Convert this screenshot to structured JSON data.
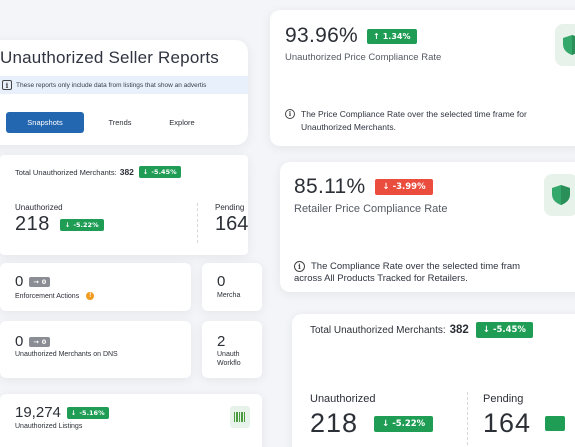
{
  "reports": {
    "title": "Unauthorized Seller Reports",
    "notice": "These reports only include data from listings that show an advertis",
    "tabs": [
      {
        "label": "Snapshots",
        "active": true
      },
      {
        "label": "Trends",
        "active": false
      },
      {
        "label": "Explore",
        "active": false
      }
    ],
    "total_label": "Total Unauthorized Merchants:",
    "total_value": "382",
    "total_change": "-5.45%",
    "unauthorized_label": "Unauthorized",
    "unauthorized_value": "218",
    "unauthorized_change": "-5.22%",
    "pending_label": "Pending",
    "pending_value": "164",
    "enforcement_value": "0",
    "enforcement_change": "0",
    "enforcement_label": "Enforcement Actions",
    "merch_value": "0",
    "merch_label": "Mercha",
    "dns_value": "0",
    "dns_change": "0",
    "dns_label": "Unauthorized Merchants on DNS",
    "workflow_value": "2",
    "workflow_label_1": "Unauth",
    "workflow_label_2": "Workflo",
    "listings_value": "19,274",
    "listings_change": "-5.16%",
    "listings_label": "Unauthorized Listings"
  },
  "price_compliance": {
    "value": "93.96%",
    "change": "1.34%",
    "label": "Unauthorized Price Compliance Rate",
    "note": "The Price Compliance Rate over the selected time frame for Unauthorized Merchants."
  },
  "retailer_compliance": {
    "value": "85.11%",
    "change": "-3.99%",
    "label": "Retailer Price Compliance Rate",
    "note_1": "The Compliance Rate over the selected time fram",
    "note_2": "across All Products Tracked for Retailers."
  },
  "merchants_zoom": {
    "total_label": "Total Unauthorized Merchants:",
    "total_value": "382",
    "total_change": "-5.45%",
    "unauthorized_label": "Unauthorized",
    "unauthorized_value": "218",
    "unauthorized_change": "-5.22%",
    "pending_label": "Pending",
    "pending_value": "164"
  },
  "icons": {
    "info": "info-icon",
    "arrow_up": "arrow-up-icon",
    "arrow_down": "arrow-down-icon",
    "arrow_right": "arrow-right-icon",
    "shield": "shield-icon",
    "warning": "warning-icon",
    "barcode": "barcode-icon"
  },
  "colors": {
    "primary": "#2467b1",
    "positive": "#1f9d55",
    "negative": "#ea4d3d",
    "neutral": "#8a8d93",
    "notice_bg": "#e8f0fb",
    "warning": "#f29a1e",
    "shield_green": "#34a86a"
  }
}
